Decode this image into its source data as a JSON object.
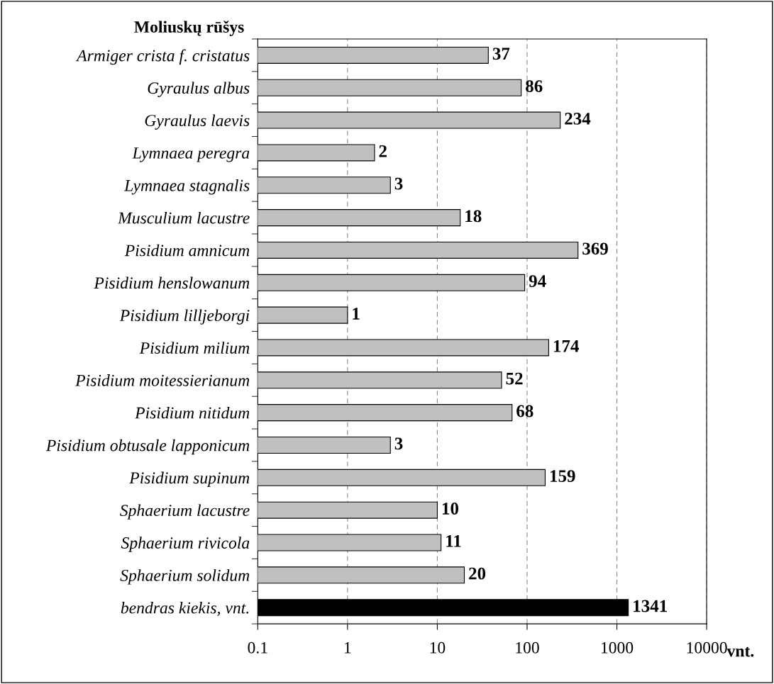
{
  "chart_data": {
    "type": "bar",
    "orientation": "horizontal",
    "ylabel": "Moliuskų rūšys",
    "xlabel": "vnt.",
    "categories": [
      "Armiger crista f. cristatus",
      "Gyraulus albus",
      "Gyraulus laevis",
      "Lymnaea peregra",
      "Lymnaea stagnalis",
      "Musculium lacustre",
      "Pisidium amnicum",
      "Pisidium henslowanum",
      "Pisidium lilljeborgi",
      "Pisidium milium",
      "Pisidium moitessierianum",
      "Pisidium nitidum",
      "Pisidium obtusale lapponicum",
      "Pisidium supinum",
      "Sphaerium lacustre",
      "Sphaerium rivicola",
      "Sphaerium solidum",
      "bendras kiekis, vnt."
    ],
    "values": [
      37,
      86,
      234,
      2,
      3,
      18,
      369,
      94,
      1,
      174,
      52,
      68,
      3,
      159,
      10,
      11,
      20,
      1341
    ],
    "colors": [
      "#c0c0c0",
      "#c0c0c0",
      "#c0c0c0",
      "#c0c0c0",
      "#c0c0c0",
      "#c0c0c0",
      "#c0c0c0",
      "#c0c0c0",
      "#c0c0c0",
      "#c0c0c0",
      "#c0c0c0",
      "#c0c0c0",
      "#c0c0c0",
      "#c0c0c0",
      "#c0c0c0",
      "#c0c0c0",
      "#c0c0c0",
      "#000000"
    ],
    "log": "x",
    "xlim": [
      0.1,
      10000
    ],
    "xticks": [
      0.1,
      1,
      10,
      100,
      1000,
      10000
    ],
    "grid": "x",
    "data_labels": true
  }
}
